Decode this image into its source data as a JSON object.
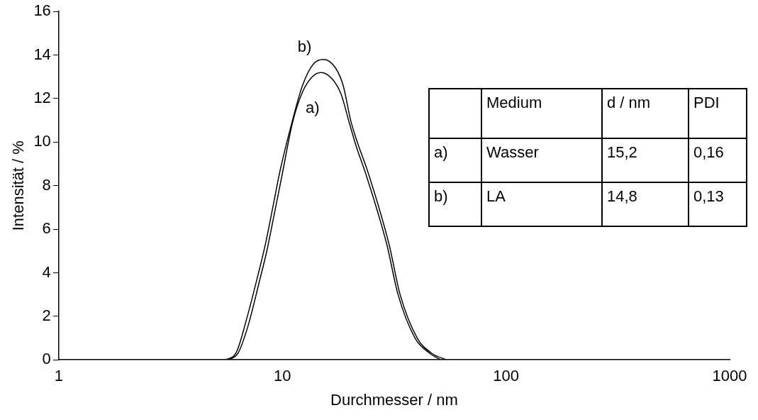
{
  "chart_data": {
    "type": "line",
    "xlabel": "Durchmesser / nm",
    "ylabel": "Intensität / %",
    "log": "x",
    "xlim": [
      1,
      1000
    ],
    "xticks": [
      1,
      10,
      100,
      1000
    ],
    "ylim": [
      0,
      16
    ],
    "yticks": [
      0,
      2,
      4,
      6,
      8,
      10,
      12,
      14,
      16
    ],
    "grid": false,
    "legend": false,
    "marker": "none",
    "line_style": "solid",
    "series": [
      {
        "name": "a)",
        "color": "#000000",
        "x": [
          5.73,
          6.33,
          7.04,
          7.89,
          8.52,
          9.2,
          9.93,
          11.1,
          12.3,
          13.6,
          14.9,
          16.7,
          18.3,
          19.9,
          21.4,
          23.5,
          29.3,
          32.9,
          39.2,
          45.6,
          51.1
        ],
        "values": [
          0,
          0.3,
          1.6,
          3.6,
          5.0,
          6.7,
          8.4,
          10.9,
          12.3,
          13.0,
          13.2,
          12.9,
          12.2,
          10.9,
          9.8,
          8.6,
          5.3,
          3.0,
          1.0,
          0.3,
          0
        ]
      },
      {
        "name": "b)",
        "color": "#000000",
        "x": [
          5.52,
          6.19,
          6.93,
          7.78,
          8.39,
          9.06,
          9.77,
          11.1,
          12.3,
          13.8,
          15.3,
          17.3,
          18.7,
          20.2,
          21.8,
          24.0,
          30.0,
          33.6,
          40.1,
          46.6,
          54.3
        ],
        "values": [
          0,
          0.3,
          1.9,
          3.9,
          5.3,
          7.0,
          8.7,
          11.0,
          12.6,
          13.6,
          13.8,
          13.4,
          12.6,
          11.0,
          9.9,
          8.7,
          5.3,
          3.0,
          1.0,
          0.3,
          0
        ]
      }
    ],
    "annotations": [
      "Medium",
      "d / nm",
      "PDI",
      "a)",
      "Wasser",
      "15,2",
      "0,16",
      "b)",
      "LA",
      "14,8",
      "0,13"
    ]
  }
}
